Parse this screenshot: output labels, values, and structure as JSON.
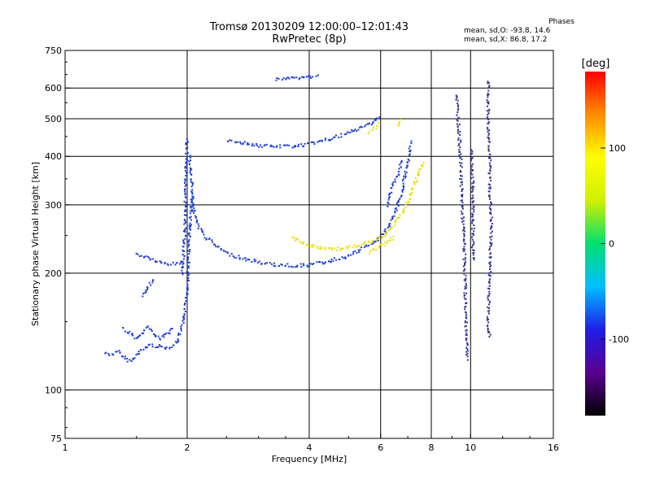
{
  "title_line1": "Tromsø 20130209 12:00:00–12:01:43",
  "title_line2": "RwPretec (8p)",
  "phases": {
    "title": "Phases",
    "line1": "mean, sd,O: -93.8, 14.6",
    "line2": "mean, sd,X:  86.8, 17.2"
  },
  "chart_data": {
    "type": "scatter",
    "xlabel": "Frequency [MHz]",
    "ylabel": "Stationary phase Virtual Height [km]",
    "x_scale": "log",
    "y_scale": "log",
    "xlim": [
      1,
      16
    ],
    "ylim": [
      75,
      750
    ],
    "x_ticks": [
      1,
      2,
      4,
      6,
      8,
      10,
      16
    ],
    "y_ticks": [
      75,
      100,
      200,
      300,
      400,
      500,
      600,
      750
    ],
    "x_gridlines": [
      2,
      4,
      6,
      8,
      10
    ],
    "y_gridlines": [
      100,
      200,
      300,
      400,
      500,
      600
    ],
    "colorbar": {
      "label": "[deg]",
      "range": [
        -180,
        180
      ],
      "ticks": [
        100,
        0,
        -100
      ],
      "colors": [
        "#000000",
        "#5a0090",
        "#1e1ee6",
        "#00bfff",
        "#00e070",
        "#d0f000",
        "#ffff00",
        "#ff8c00",
        "#ff0000"
      ]
    },
    "series": [
      {
        "color": "#1c3cd8",
        "segments": [
          [
            [
              1.25,
              125
            ],
            [
              1.3,
              124
            ],
            [
              1.35,
              126
            ],
            [
              1.4,
              121
            ],
            [
              1.45,
              119
            ],
            [
              1.5,
              124
            ],
            [
              1.55,
              128
            ],
            [
              1.6,
              131
            ],
            [
              1.7,
              130
            ],
            [
              1.8,
              129
            ],
            [
              1.88,
              133
            ],
            [
              1.95,
              150
            ],
            [
              1.98,
              170
            ],
            [
              2.0,
              200
            ],
            [
              2.02,
              260
            ],
            [
              2.05,
              320
            ]
          ],
          [
            [
              1.38,
              145
            ],
            [
              1.45,
              140
            ],
            [
              1.5,
              136
            ],
            [
              1.55,
              141
            ],
            [
              1.6,
              146
            ],
            [
              1.65,
              140
            ],
            [
              1.7,
              136
            ],
            [
              1.78,
              140
            ],
            [
              1.85,
              145
            ]
          ],
          [
            [
              1.5,
              225
            ],
            [
              1.55,
              222
            ],
            [
              1.6,
              220
            ],
            [
              1.7,
              214
            ],
            [
              1.8,
              212
            ],
            [
              1.9,
              213
            ],
            [
              1.95,
              218
            ]
          ],
          [
            [
              1.94,
              200
            ],
            [
              1.96,
              240
            ],
            [
              1.97,
              300
            ],
            [
              1.98,
              380
            ],
            [
              1.99,
              450
            ]
          ],
          [
            [
              2.02,
              400
            ],
            [
              2.04,
              350
            ],
            [
              2.06,
              300
            ],
            [
              2.1,
              270
            ],
            [
              2.2,
              250
            ],
            [
              2.35,
              236
            ],
            [
              2.5,
              226
            ],
            [
              2.7,
              220
            ],
            [
              3.0,
              214
            ],
            [
              3.3,
              211
            ],
            [
              3.7,
              210
            ],
            [
              4.0,
              211
            ],
            [
              4.5,
              216
            ],
            [
              5.0,
              223
            ],
            [
              5.3,
              230
            ],
            [
              5.6,
              238
            ],
            [
              5.9,
              246
            ],
            [
              6.2,
              262
            ],
            [
              6.5,
              288
            ],
            [
              6.7,
              318
            ],
            [
              6.85,
              355
            ],
            [
              7.0,
              400
            ],
            [
              7.1,
              440
            ]
          ],
          [
            [
              2.5,
              441
            ],
            [
              2.7,
              437
            ],
            [
              3.0,
              428
            ],
            [
              3.3,
              426
            ],
            [
              3.6,
              427
            ],
            [
              3.9,
              430
            ],
            [
              4.2,
              438
            ],
            [
              4.5,
              446
            ],
            [
              4.8,
              455
            ],
            [
              5.1,
              466
            ],
            [
              5.4,
              478
            ],
            [
              5.7,
              492
            ],
            [
              6.0,
              510
            ]
          ],
          [
            [
              3.3,
              635
            ],
            [
              3.5,
              637
            ],
            [
              3.7,
              640
            ],
            [
              4.0,
              644
            ],
            [
              4.2,
              647
            ]
          ],
          [
            [
              6.2,
              300
            ],
            [
              6.4,
              340
            ],
            [
              6.6,
              360
            ],
            [
              6.75,
              395
            ]
          ],
          [
            [
              1.55,
              175
            ],
            [
              1.6,
              185
            ],
            [
              1.65,
              195
            ]
          ]
        ]
      },
      {
        "color": "#e8e000",
        "segments": [
          [
            [
              3.6,
              248
            ],
            [
              3.8,
              242
            ],
            [
              4.0,
              236
            ],
            [
              4.3,
              233
            ],
            [
              4.6,
              232
            ],
            [
              4.9,
              233
            ],
            [
              5.2,
              236
            ],
            [
              5.5,
              240
            ],
            [
              5.8,
              244
            ],
            [
              6.1,
              252
            ],
            [
              6.4,
              266
            ],
            [
              6.7,
              284
            ],
            [
              7.0,
              308
            ],
            [
              7.2,
              335
            ],
            [
              7.4,
              362
            ],
            [
              7.6,
              392
            ]
          ],
          [
            [
              5.6,
              460
            ],
            [
              5.8,
              476
            ],
            [
              5.95,
              490
            ]
          ],
          [
            [
              6.6,
              480
            ],
            [
              6.7,
              500
            ]
          ],
          [
            [
              5.6,
              228
            ],
            [
              5.9,
              234
            ],
            [
              6.2,
              240
            ],
            [
              6.5,
              250
            ]
          ]
        ]
      },
      {
        "color": "#333399",
        "segments": [
          [
            [
              9.2,
              580
            ],
            [
              9.3,
              480
            ],
            [
              9.4,
              400
            ],
            [
              9.5,
              290
            ],
            [
              9.6,
              240
            ],
            [
              9.7,
              150
            ],
            [
              9.8,
              120
            ]
          ],
          [
            [
              11.0,
              630
            ],
            [
              11.0,
              480
            ],
            [
              11.1,
              410
            ],
            [
              11.1,
              330
            ],
            [
              11.2,
              270
            ],
            [
              11.0,
              150
            ],
            [
              11.1,
              136
            ]
          ],
          [
            [
              10.0,
              420
            ],
            [
              10.1,
              310
            ],
            [
              10.1,
              215
            ]
          ]
        ]
      }
    ]
  }
}
